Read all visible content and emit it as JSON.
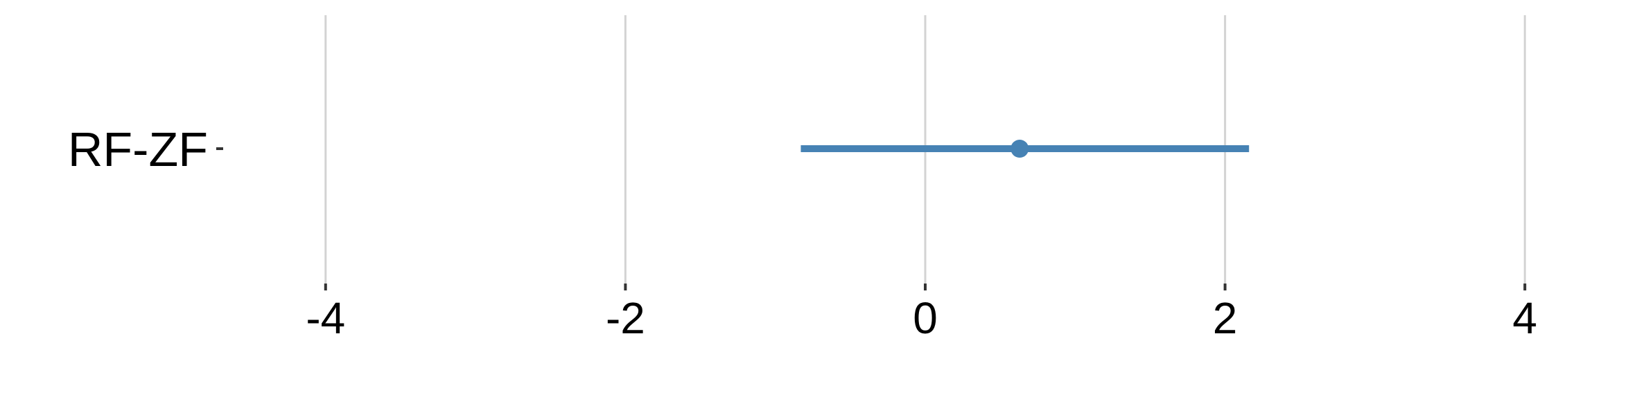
{
  "chart_data": {
    "type": "forest",
    "categories": [
      "RF-ZF"
    ],
    "estimates": [
      0.63
    ],
    "lower": [
      -0.83
    ],
    "upper": [
      2.16
    ],
    "xlim": [
      -4.6,
      4.6
    ],
    "xticks": [
      -4,
      -2,
      0,
      2,
      4
    ],
    "xtick_labels": [
      "-4",
      "-2",
      "0",
      "2",
      "4"
    ],
    "grid": "vertical",
    "colors": {
      "series": "#4682B4",
      "grid": "#D3D3D3",
      "ticks": "#333333",
      "text": "#000000"
    }
  }
}
